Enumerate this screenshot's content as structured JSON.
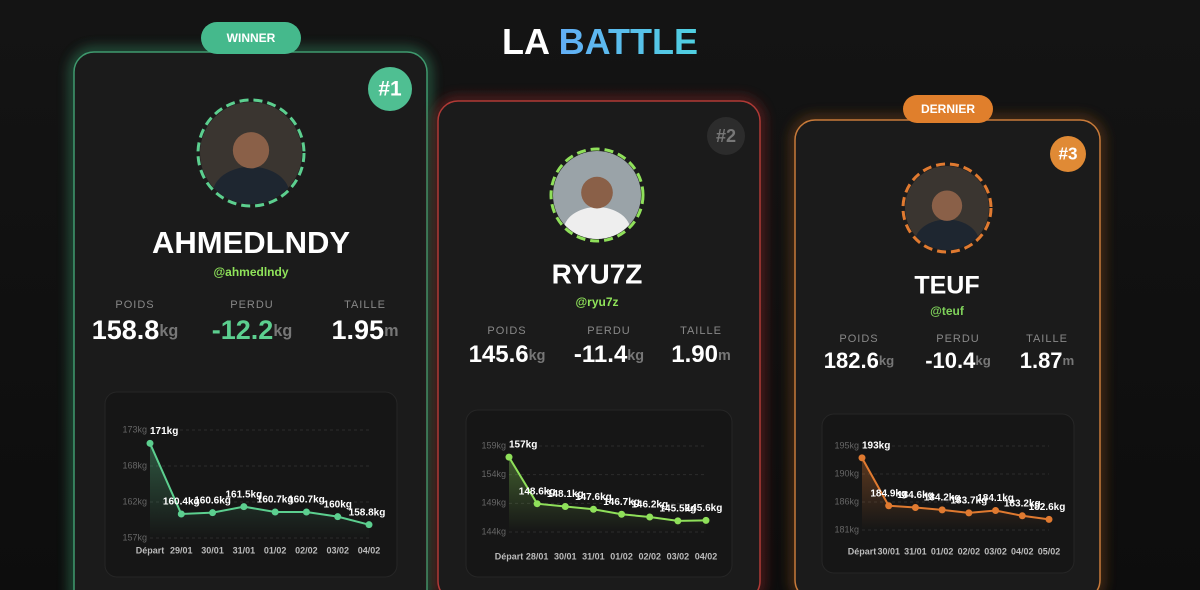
{
  "title": {
    "part1": "LA",
    "part2": "BATTLE"
  },
  "players": [
    {
      "badge": "WINNER",
      "rank": "#1",
      "name": "AHMEDLNDY",
      "handle": "@ahmedlndy",
      "stats": [
        {
          "label": "POIDS",
          "value": "158.8",
          "unit": "kg"
        },
        {
          "label": "PERDU",
          "value": "-12.2",
          "unit": "kg"
        },
        {
          "label": "TAILLE",
          "value": "1.95",
          "unit": "m"
        }
      ]
    },
    {
      "rank": "#2",
      "name": "RYU7Z",
      "handle": "@ryu7z",
      "stats": [
        {
          "label": "POIDS",
          "value": "145.6",
          "unit": "kg"
        },
        {
          "label": "PERDU",
          "value": "-11.4",
          "unit": "kg"
        },
        {
          "label": "TAILLE",
          "value": "1.90",
          "unit": "m"
        }
      ]
    },
    {
      "badge": "DERNIER",
      "rank": "#3",
      "name": "TEUF",
      "handle": "@teuf",
      "stats": [
        {
          "label": "POIDS",
          "value": "182.6",
          "unit": "kg"
        },
        {
          "label": "PERDU",
          "value": "-10.4",
          "unit": "kg"
        },
        {
          "label": "TAILLE",
          "value": "1.87",
          "unit": "m"
        }
      ]
    }
  ],
  "chart_data": [
    {
      "type": "line",
      "color": "#5ccf8f",
      "categories": [
        "Départ",
        "29/01",
        "30/01",
        "31/01",
        "01/02",
        "02/02",
        "03/02",
        "04/02"
      ],
      "values": [
        171,
        160.4,
        160.6,
        161.5,
        160.7,
        160.7,
        160,
        158.8
      ],
      "value_labels": [
        "171kg",
        "160.4kg",
        "160.6kg",
        "161.5kg",
        "160.7kg",
        "160.7kg",
        "160kg",
        "158.8kg"
      ],
      "ylim": [
        156.8,
        173
      ],
      "yticks": [
        {
          "value": 173,
          "label": "173kg"
        },
        {
          "value": 167.6,
          "label": "168kg"
        },
        {
          "value": 162.2,
          "label": "162kg"
        },
        {
          "value": 156.8,
          "label": "157kg"
        }
      ]
    },
    {
      "type": "line",
      "color": "#8fe05a",
      "categories": [
        "Départ",
        "28/01",
        "30/01",
        "31/01",
        "01/02",
        "02/02",
        "03/02",
        "04/02"
      ],
      "values": [
        157,
        148.6,
        148.1,
        147.6,
        146.7,
        146.2,
        145.5,
        145.6
      ],
      "value_labels": [
        "157kg",
        "148.6kg",
        "148.1kg",
        "147.6kg",
        "146.7kg",
        "146.2kg",
        "145.5kg",
        "145.6kg"
      ],
      "ylim": [
        143.5,
        159
      ],
      "yticks": [
        {
          "value": 159,
          "label": "159kg"
        },
        {
          "value": 153.83,
          "label": "154kg"
        },
        {
          "value": 148.67,
          "label": "149kg"
        },
        {
          "value": 143.5,
          "label": "144kg"
        }
      ]
    },
    {
      "type": "line",
      "color": "#e07a30",
      "categories": [
        "Départ",
        "30/01",
        "31/01",
        "01/02",
        "02/02",
        "03/02",
        "04/02",
        "05/02"
      ],
      "values": [
        193,
        184.9,
        184.6,
        184.2,
        183.7,
        184.1,
        183.2,
        182.6
      ],
      "value_labels": [
        "193kg",
        "184.9kg",
        "184.6kg",
        "184.2kg",
        "183.7kg",
        "184.1kg",
        "183.2kg",
        "182.6kg"
      ],
      "ylim": [
        180.8,
        195
      ],
      "yticks": [
        {
          "value": 195,
          "label": "195kg"
        },
        {
          "value": 190.27,
          "label": "190kg"
        },
        {
          "value": 185.53,
          "label": "186kg"
        },
        {
          "value": 180.8,
          "label": "181kg"
        }
      ]
    }
  ]
}
